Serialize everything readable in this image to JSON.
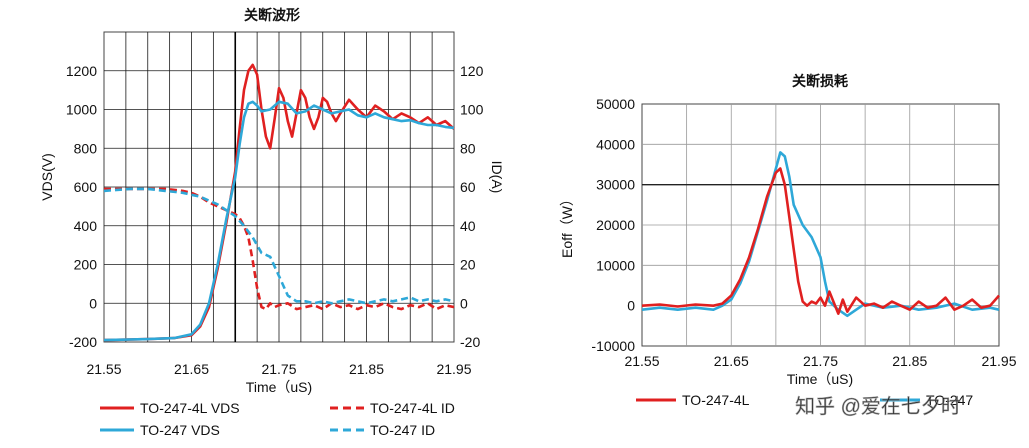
{
  "chart_data": [
    {
      "type": "line",
      "title": "关断波形",
      "xlabel": "Time（uS)",
      "ylabel": "VDS(V)",
      "y2label": "ID(A)",
      "xlim": [
        21.55,
        21.95
      ],
      "ylim": [
        -200,
        1400
      ],
      "y2lim": [
        -20,
        140
      ],
      "xticks": [
        "21.55",
        "21.65",
        "21.75",
        "21.85",
        "21.95"
      ],
      "yticks": [
        "-200",
        "0",
        "200",
        "400",
        "600",
        "800",
        "1000",
        "1200"
      ],
      "y2ticks": [
        "-20",
        "0",
        "20",
        "40",
        "60",
        "80",
        "100",
        "120"
      ],
      "vline_x": 21.7,
      "series": [
        {
          "name": "TO-247-4L VDS",
          "axis": "left",
          "color": "#e02020",
          "dash": false,
          "x": [
            21.55,
            21.6,
            21.63,
            21.65,
            21.66,
            21.67,
            21.68,
            21.69,
            21.7,
            21.705,
            21.71,
            21.715,
            21.72,
            21.725,
            21.73,
            21.735,
            21.74,
            21.745,
            21.75,
            21.755,
            21.76,
            21.765,
            21.77,
            21.775,
            21.78,
            21.785,
            21.79,
            21.795,
            21.8,
            21.805,
            21.81,
            21.815,
            21.82,
            21.83,
            21.84,
            21.85,
            21.86,
            21.87,
            21.88,
            21.89,
            21.9,
            21.91,
            21.92,
            21.93,
            21.94,
            21.95
          ],
          "y": [
            -190,
            -185,
            -180,
            -165,
            -120,
            -20,
            180,
            420,
            680,
            900,
            1100,
            1200,
            1230,
            1180,
            1000,
            860,
            800,
            950,
            1110,
            1060,
            940,
            860,
            980,
            1100,
            1060,
            960,
            900,
            960,
            1060,
            1040,
            980,
            940,
            980,
            1050,
            1000,
            960,
            1020,
            990,
            950,
            980,
            960,
            930,
            960,
            920,
            940,
            900
          ]
        },
        {
          "name": "TO-247-4L ID",
          "axis": "right",
          "color": "#e02020",
          "dash": true,
          "x": [
            21.55,
            21.58,
            21.6,
            21.62,
            21.64,
            21.65,
            21.66,
            21.67,
            21.68,
            21.69,
            21.7,
            21.705,
            21.71,
            21.715,
            21.72,
            21.725,
            21.73,
            21.735,
            21.74,
            21.745,
            21.75,
            21.76,
            21.77,
            21.78,
            21.79,
            21.8,
            21.81,
            21.82,
            21.83,
            21.84,
            21.85,
            21.86,
            21.87,
            21.88,
            21.89,
            21.9,
            21.91,
            21.92,
            21.93,
            21.94,
            21.95
          ],
          "y": [
            59,
            59,
            59,
            59,
            58,
            57,
            55,
            52,
            50,
            48,
            46,
            44,
            40,
            34,
            22,
            8,
            -2,
            -3,
            0,
            -2,
            -1,
            0,
            -3,
            -2,
            -1,
            -3,
            0,
            -2,
            -1,
            -3,
            -1,
            -2,
            0,
            -2,
            -3,
            -1,
            -2,
            0,
            -3,
            -1,
            -2
          ]
        },
        {
          "name": "TO-247 VDS",
          "axis": "left",
          "color": "#2ea8d8",
          "dash": false,
          "x": [
            21.55,
            21.6,
            21.63,
            21.65,
            21.66,
            21.67,
            21.68,
            21.69,
            21.7,
            21.705,
            21.71,
            21.715,
            21.72,
            21.725,
            21.73,
            21.74,
            21.75,
            21.76,
            21.77,
            21.78,
            21.79,
            21.8,
            21.81,
            21.82,
            21.83,
            21.84,
            21.85,
            21.86,
            21.87,
            21.88,
            21.89,
            21.9,
            21.91,
            21.92,
            21.93,
            21.94,
            21.95
          ],
          "y": [
            -190,
            -185,
            -180,
            -160,
            -110,
            0,
            200,
            440,
            650,
            820,
            960,
            1030,
            1040,
            1020,
            990,
            1000,
            1040,
            1030,
            980,
            990,
            1020,
            1000,
            980,
            990,
            1000,
            970,
            960,
            980,
            960,
            950,
            940,
            945,
            930,
            920,
            920,
            910,
            905
          ]
        },
        {
          "name": "TO-247 ID",
          "axis": "right",
          "color": "#2ea8d8",
          "dash": true,
          "x": [
            21.55,
            21.58,
            21.6,
            21.62,
            21.64,
            21.65,
            21.66,
            21.67,
            21.68,
            21.69,
            21.7,
            21.71,
            21.72,
            21.73,
            21.74,
            21.75,
            21.76,
            21.77,
            21.78,
            21.79,
            21.8,
            21.81,
            21.82,
            21.83,
            21.84,
            21.85,
            21.86,
            21.87,
            21.88,
            21.89,
            21.9,
            21.91,
            21.92,
            21.93,
            21.94,
            21.95
          ],
          "y": [
            58,
            59,
            59,
            58,
            57,
            56,
            55,
            53,
            51,
            48,
            45,
            40,
            34,
            26,
            24,
            14,
            4,
            1,
            1,
            0,
            1,
            0,
            1,
            2,
            1,
            0,
            1,
            2,
            1,
            2,
            3,
            1,
            2,
            1,
            2,
            1
          ]
        }
      ],
      "legend": [
        "TO-247-4L VDS",
        "TO-247-4L ID",
        "TO-247 VDS",
        "TO-247 ID"
      ]
    },
    {
      "type": "line",
      "title": "关断损耗",
      "xlabel": "Time（uS)",
      "ylabel": "Eoff（W）",
      "xlim": [
        21.55,
        21.95
      ],
      "ylim": [
        -10000,
        50000
      ],
      "xticks": [
        "21.55",
        "21.65",
        "21.75",
        "21.85",
        "21.95"
      ],
      "yticks": [
        "-10000",
        "0",
        "10000",
        "20000",
        "30000",
        "40000",
        "50000"
      ],
      "series": [
        {
          "name": "TO-247-4L",
          "color": "#e02020",
          "x": [
            21.55,
            21.57,
            21.59,
            21.61,
            21.63,
            21.64,
            21.65,
            21.66,
            21.67,
            21.68,
            21.69,
            21.7,
            21.705,
            21.71,
            21.715,
            21.72,
            21.725,
            21.73,
            21.735,
            21.74,
            21.745,
            21.75,
            21.755,
            21.76,
            21.77,
            21.775,
            21.78,
            21.79,
            21.8,
            21.81,
            21.82,
            21.83,
            21.84,
            21.85,
            21.86,
            21.87,
            21.88,
            21.89,
            21.9,
            21.91,
            21.92,
            21.93,
            21.94,
            21.95
          ],
          "y": [
            0,
            300,
            -200,
            300,
            0,
            500,
            2500,
            6500,
            12000,
            19000,
            27000,
            33000,
            34000,
            30000,
            22000,
            14000,
            6000,
            1000,
            0,
            1000,
            500,
            2000,
            0,
            3500,
            -2000,
            1500,
            -1500,
            2000,
            0,
            500,
            -500,
            1000,
            0,
            -1000,
            1000,
            -500,
            0,
            2000,
            -1000,
            0,
            1500,
            -500,
            0,
            2500
          ]
        },
        {
          "name": "TO-247",
          "color": "#2ea8d8",
          "x": [
            21.55,
            21.57,
            21.59,
            21.61,
            21.63,
            21.64,
            21.65,
            21.66,
            21.67,
            21.68,
            21.69,
            21.7,
            21.705,
            21.71,
            21.715,
            21.72,
            21.73,
            21.74,
            21.75,
            21.755,
            21.76,
            21.77,
            21.78,
            21.79,
            21.8,
            21.82,
            21.84,
            21.86,
            21.88,
            21.9,
            21.92,
            21.94,
            21.95
          ],
          "y": [
            -1000,
            -500,
            -1000,
            -500,
            -1000,
            0,
            1500,
            5500,
            11000,
            18500,
            26000,
            34000,
            38000,
            37000,
            32000,
            25000,
            20000,
            17000,
            12000,
            6000,
            1000,
            -1000,
            -2500,
            -1000,
            500,
            -500,
            0,
            -1000,
            -500,
            500,
            -1000,
            -500,
            -1000
          ]
        }
      ],
      "legend": [
        "TO-247-4L",
        "TO-247"
      ]
    }
  ],
  "watermark": "知乎 @爱在七夕时"
}
